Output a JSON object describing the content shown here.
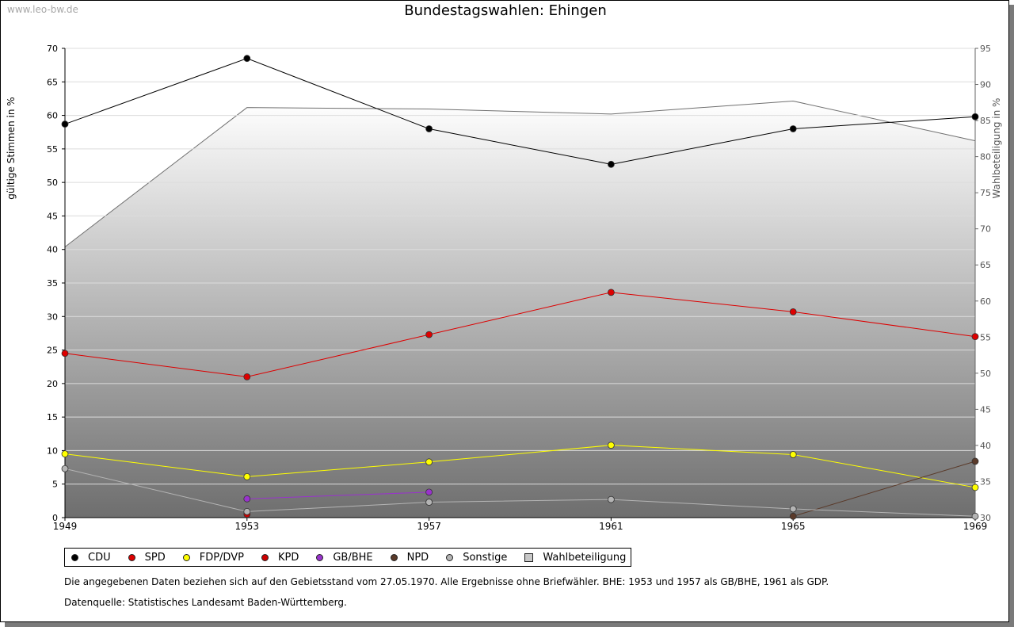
{
  "watermark": "www.leo-bw.de",
  "chart_data": {
    "type": "line",
    "title": "Bundestagswahlen: Ehingen",
    "ylabel": "gültige Stimmen in %",
    "y2label": "Wahlbeteiligung in %",
    "ylim": [
      0,
      70
    ],
    "y2lim": [
      30,
      95
    ],
    "yticks": [
      "0",
      "5",
      "10",
      "15",
      "20",
      "25",
      "30",
      "35",
      "40",
      "45",
      "50",
      "55",
      "60",
      "65",
      "70"
    ],
    "y2ticks": [
      "30",
      "35",
      "40",
      "45",
      "50",
      "55",
      "60",
      "65",
      "70",
      "75",
      "80",
      "85",
      "90",
      "95"
    ],
    "categories": [
      "1949",
      "1953",
      "1957",
      "1961",
      "1965",
      "1969"
    ],
    "grid": true,
    "legend_position": "bottom",
    "series": [
      {
        "name": "CDU",
        "color": "#000000",
        "values": [
          58.7,
          68.5,
          58.0,
          52.7,
          58.0,
          59.8
        ]
      },
      {
        "name": "SPD",
        "color": "#dd0000",
        "values": [
          24.5,
          21.0,
          27.3,
          33.6,
          30.7,
          27.0
        ]
      },
      {
        "name": "FDP/DVP",
        "color": "#ffff00",
        "values": [
          9.5,
          6.1,
          8.3,
          10.8,
          9.4,
          4.5
        ]
      },
      {
        "name": "KPD",
        "color": "#cc0000",
        "values": [
          null,
          0.5,
          null,
          null,
          null,
          null
        ]
      },
      {
        "name": "GB/BHE",
        "color": "#9933cc",
        "values": [
          null,
          2.8,
          3.8,
          null,
          null,
          null
        ]
      },
      {
        "name": "NPD",
        "color": "#5a3a2a",
        "values": [
          null,
          null,
          null,
          null,
          0.2,
          8.4
        ]
      },
      {
        "name": "Sonstige",
        "color": "#b4b4b4",
        "values": [
          7.3,
          0.9,
          2.3,
          2.7,
          1.3,
          0.2
        ]
      }
    ],
    "turnout": {
      "name": "Wahlbeteiligung",
      "color": "#c8c8c8",
      "values": [
        67.5,
        86.8,
        86.6,
        85.9,
        87.7,
        82.2
      ]
    }
  },
  "notes": {
    "line1": "Die angegebenen Daten beziehen sich auf den Gebietsstand vom 27.05.1970. Alle Ergebnisse ohne Briefwähler. BHE: 1953 und 1957 als GB/BHE, 1961 als GDP.",
    "line2": "Datenquelle: Statistisches Landesamt Baden-Württemberg."
  }
}
